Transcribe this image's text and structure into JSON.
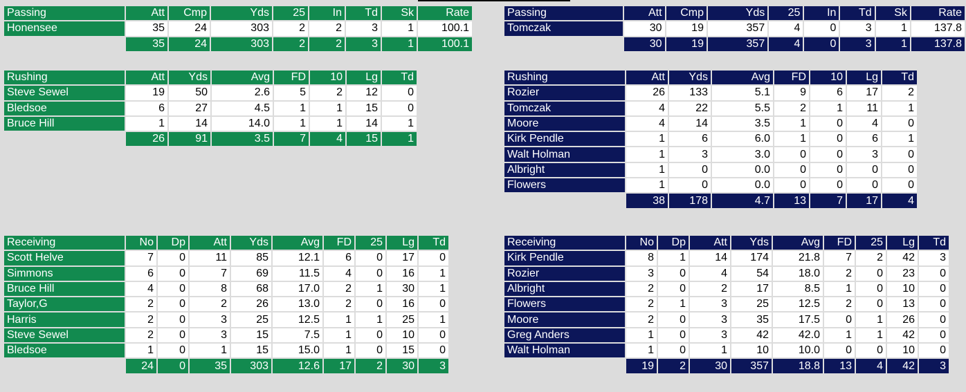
{
  "colors": {
    "green_team": "#128a4f",
    "navy_team": "#0c1659",
    "background": "#dcdcdc",
    "cell": "#ffffff"
  },
  "left": {
    "passing": {
      "title": "Passing",
      "headers": [
        "Att",
        "Cmp",
        "Yds",
        "25",
        "In",
        "Td",
        "Sk",
        "Rate"
      ],
      "rows": [
        {
          "name": "Honensee",
          "vals": [
            "35",
            "24",
            "303",
            "2",
            "2",
            "3",
            "1",
            "100.1"
          ]
        }
      ],
      "total": [
        "35",
        "24",
        "303",
        "2",
        "2",
        "3",
        "1",
        "100.1"
      ]
    },
    "rushing": {
      "title": "Rushing",
      "headers": [
        "Att",
        "Yds",
        "Avg",
        "FD",
        "10",
        "Lg",
        "Td"
      ],
      "rows": [
        {
          "name": "Steve Sewel",
          "vals": [
            "19",
            "50",
            "2.6",
            "5",
            "2",
            "12",
            "0"
          ]
        },
        {
          "name": "Bledsoe",
          "vals": [
            "6",
            "27",
            "4.5",
            "1",
            "1",
            "15",
            "0"
          ]
        },
        {
          "name": "Bruce Hill",
          "vals": [
            "1",
            "14",
            "14.0",
            "1",
            "1",
            "14",
            "1"
          ]
        }
      ],
      "total": [
        "26",
        "91",
        "3.5",
        "7",
        "4",
        "15",
        "1"
      ]
    },
    "receiving": {
      "title": "Receiving",
      "headers": [
        "No",
        "Dp",
        "Att",
        "Yds",
        "Avg",
        "FD",
        "25",
        "Lg",
        "Td"
      ],
      "rows": [
        {
          "name": "Scott Helve",
          "vals": [
            "7",
            "0",
            "11",
            "85",
            "12.1",
            "6",
            "0",
            "17",
            "0"
          ]
        },
        {
          "name": "Simmons",
          "vals": [
            "6",
            "0",
            "7",
            "69",
            "11.5",
            "4",
            "0",
            "16",
            "1"
          ]
        },
        {
          "name": "Bruce Hill",
          "vals": [
            "4",
            "0",
            "8",
            "68",
            "17.0",
            "2",
            "1",
            "30",
            "1"
          ]
        },
        {
          "name": "Taylor,G",
          "vals": [
            "2",
            "0",
            "2",
            "26",
            "13.0",
            "2",
            "0",
            "16",
            "0"
          ]
        },
        {
          "name": "Harris",
          "vals": [
            "2",
            "0",
            "3",
            "25",
            "12.5",
            "1",
            "1",
            "25",
            "1"
          ]
        },
        {
          "name": "Steve Sewel",
          "vals": [
            "2",
            "0",
            "3",
            "15",
            "7.5",
            "1",
            "0",
            "10",
            "0"
          ]
        },
        {
          "name": "Bledsoe",
          "vals": [
            "1",
            "0",
            "1",
            "15",
            "15.0",
            "1",
            "0",
            "15",
            "0"
          ]
        }
      ],
      "total": [
        "24",
        "0",
        "35",
        "303",
        "12.6",
        "17",
        "2",
        "30",
        "3"
      ]
    }
  },
  "right": {
    "passing": {
      "title": "Passing",
      "headers": [
        "Att",
        "Cmp",
        "Yds",
        "25",
        "In",
        "Td",
        "Sk",
        "Rate"
      ],
      "rows": [
        {
          "name": "Tomczak",
          "vals": [
            "30",
            "19",
            "357",
            "4",
            "0",
            "3",
            "1",
            "137.8"
          ]
        }
      ],
      "total": [
        "30",
        "19",
        "357",
        "4",
        "0",
        "3",
        "1",
        "137.8"
      ]
    },
    "rushing": {
      "title": "Rushing",
      "headers": [
        "Att",
        "Yds",
        "Avg",
        "FD",
        "10",
        "Lg",
        "Td"
      ],
      "rows": [
        {
          "name": "Rozier",
          "vals": [
            "26",
            "133",
            "5.1",
            "9",
            "6",
            "17",
            "2"
          ]
        },
        {
          "name": "Tomczak",
          "vals": [
            "4",
            "22",
            "5.5",
            "2",
            "1",
            "11",
            "1"
          ]
        },
        {
          "name": "Moore",
          "vals": [
            "4",
            "14",
            "3.5",
            "1",
            "0",
            "4",
            "0"
          ]
        },
        {
          "name": "Kirk Pendle",
          "vals": [
            "1",
            "6",
            "6.0",
            "1",
            "0",
            "6",
            "1"
          ]
        },
        {
          "name": "Walt Holman",
          "vals": [
            "1",
            "3",
            "3.0",
            "0",
            "0",
            "3",
            "0"
          ]
        },
        {
          "name": "Albright",
          "vals": [
            "1",
            "0",
            "0.0",
            "0",
            "0",
            "0",
            "0"
          ]
        },
        {
          "name": "Flowers",
          "vals": [
            "1",
            "0",
            "0.0",
            "0",
            "0",
            "0",
            "0"
          ]
        }
      ],
      "total": [
        "38",
        "178",
        "4.7",
        "13",
        "7",
        "17",
        "4"
      ]
    },
    "receiving": {
      "title": "Receiving",
      "headers": [
        "No",
        "Dp",
        "Att",
        "Yds",
        "Avg",
        "FD",
        "25",
        "Lg",
        "Td"
      ],
      "rows": [
        {
          "name": "Kirk Pendle",
          "vals": [
            "8",
            "1",
            "14",
            "174",
            "21.8",
            "7",
            "2",
            "42",
            "3"
          ]
        },
        {
          "name": "Rozier",
          "vals": [
            "3",
            "0",
            "4",
            "54",
            "18.0",
            "2",
            "0",
            "23",
            "0"
          ]
        },
        {
          "name": "Albright",
          "vals": [
            "2",
            "0",
            "2",
            "17",
            "8.5",
            "1",
            "0",
            "10",
            "0"
          ]
        },
        {
          "name": "Flowers",
          "vals": [
            "2",
            "1",
            "3",
            "25",
            "12.5",
            "2",
            "0",
            "13",
            "0"
          ]
        },
        {
          "name": "Moore",
          "vals": [
            "2",
            "0",
            "3",
            "35",
            "17.5",
            "0",
            "1",
            "26",
            "0"
          ]
        },
        {
          "name": "Greg Anders",
          "vals": [
            "1",
            "0",
            "3",
            "42",
            "42.0",
            "1",
            "1",
            "42",
            "0"
          ]
        },
        {
          "name": "Walt Holman",
          "vals": [
            "1",
            "0",
            "1",
            "10",
            "10.0",
            "0",
            "0",
            "10",
            "0"
          ]
        }
      ],
      "total": [
        "19",
        "2",
        "30",
        "357",
        "18.8",
        "13",
        "4",
        "42",
        "3"
      ]
    }
  }
}
